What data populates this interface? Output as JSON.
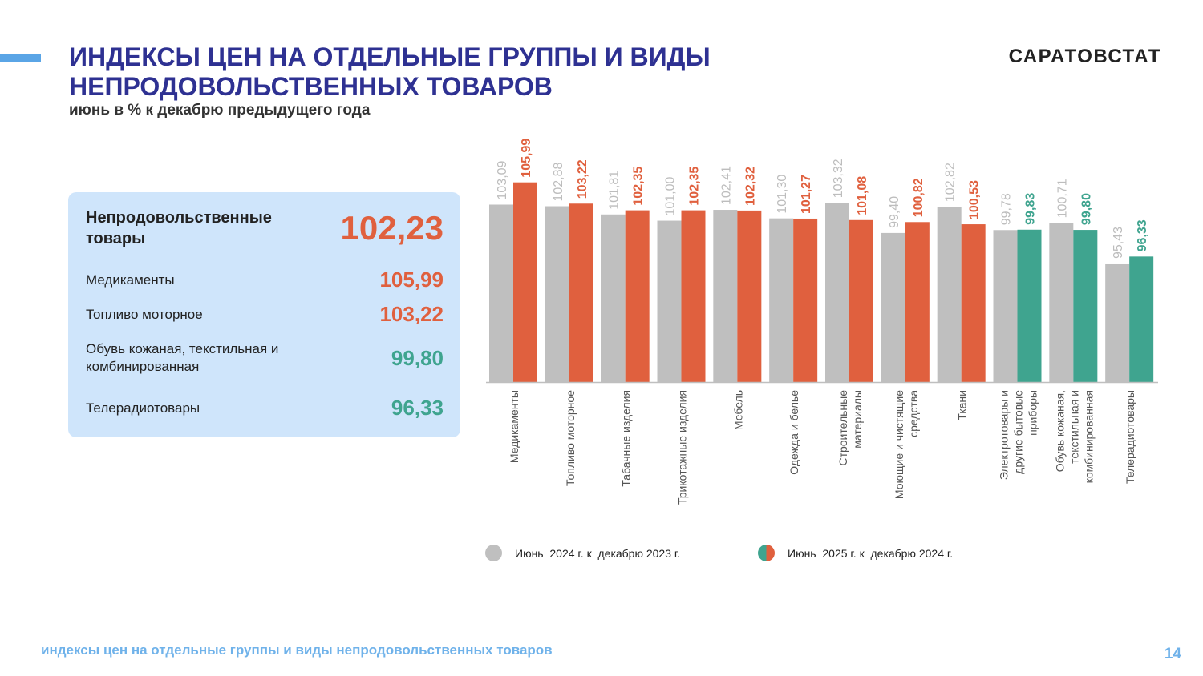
{
  "header": {
    "title_line1": "ИНДЕКСЫ ЦЕН НА ОТДЕЛЬНЫЕ ГРУППЫ И ВИДЫ",
    "title_line2": "НЕПРОДОВОЛЬСТВЕННЫХ ТОВАРОВ",
    "subtitle": "июнь в % к декабрю предыдущего года",
    "brand": "САРАТОВСТАТ"
  },
  "panel": {
    "main_label": "Непродовольственные товары",
    "main_value": "102,23",
    "items": [
      {
        "label": "Медикаменты",
        "value": "105,99"
      },
      {
        "label": "Топливо моторное",
        "value": "103,22"
      },
      {
        "label": "Обувь кожаная, текстильная и комбинированная",
        "value": "99,80"
      },
      {
        "label": "Телерадиотовары",
        "value": "96,33"
      }
    ]
  },
  "colors": {
    "gray": "#bfbfbf",
    "orange": "#e0603e",
    "green": "#3fa48f",
    "title": "#2e3192",
    "panel_bg": "#cfe5fb",
    "footer": "#6fb2ea"
  },
  "chart_data": {
    "type": "bar",
    "categories": [
      [
        "Медикаменты"
      ],
      [
        "Топливо моторное"
      ],
      [
        "Табачные изделия"
      ],
      [
        "Трикотажные изделия"
      ],
      [
        "Мебель"
      ],
      [
        "Одежда и белье"
      ],
      [
        "Строительные",
        "материалы"
      ],
      [
        "Моющие и чистящие",
        "средства"
      ],
      [
        "Ткани"
      ],
      [
        "Электротовары и",
        "другие бытовые",
        "приборы"
      ],
      [
        "Обувь кожаная,",
        "текстильная и",
        "комбинированная"
      ],
      [
        "Телерадиотовары"
      ]
    ],
    "series": [
      {
        "name": "Июнь  2024 г. к  декабрю 2023 г.",
        "values": [
          103.09,
          102.88,
          101.81,
          101.0,
          102.41,
          101.3,
          103.32,
          99.4,
          102.82,
          99.78,
          100.71,
          95.43
        ],
        "labels": [
          "103,09",
          "102,88",
          "101,81",
          "101,00",
          "102,41",
          "101,30",
          "103,32",
          "99,40",
          "102,82",
          "99,78",
          "100,71",
          "95,43"
        ],
        "color": "#bfbfbf"
      },
      {
        "name": "Июнь  2025 г. к  декабрю 2024 г.",
        "values": [
          105.99,
          103.22,
          102.35,
          102.35,
          102.32,
          101.27,
          101.08,
          100.82,
          100.53,
          99.83,
          99.8,
          96.33
        ],
        "labels": [
          "105,99",
          "103,22",
          "102,35",
          "102,35",
          "102,32",
          "101,27",
          "101,08",
          "100,82",
          "100,53",
          "99,83",
          "99,80",
          "96,33"
        ],
        "colors": [
          "#e0603e",
          "#e0603e",
          "#e0603e",
          "#e0603e",
          "#e0603e",
          "#e0603e",
          "#e0603e",
          "#e0603e",
          "#e0603e",
          "#3fa48f",
          "#3fa48f",
          "#3fa48f"
        ]
      }
    ],
    "ylim": [
      80,
      107
    ],
    "grid": false,
    "legend_position": "bottom"
  },
  "footer": {
    "text": "индексы цен на отдельные группы и виды непродовольственных товаров",
    "page": "14"
  }
}
